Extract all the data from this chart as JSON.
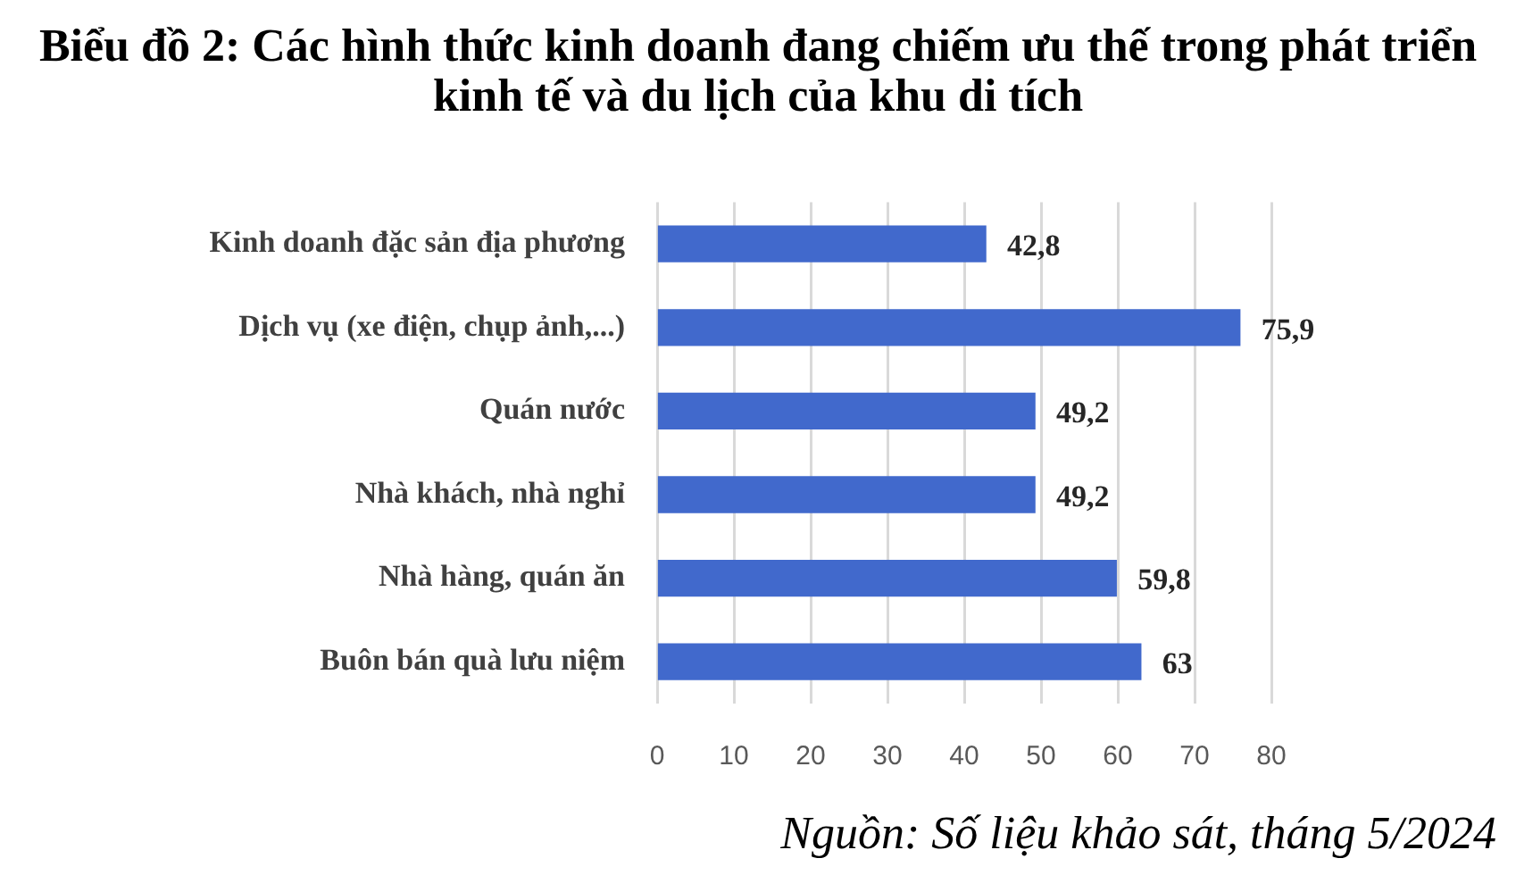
{
  "chart_data": {
    "type": "bar",
    "orientation": "horizontal",
    "title": "Biểu đồ 2: Các hình thức kinh doanh đang chiếm ưu thế trong phát triển kinh tế và du lịch của khu di tích",
    "categories": [
      "Kinh doanh đặc sản địa phương",
      "Dịch vụ (xe điện, chụp ảnh,...)",
      "Quán nước",
      "Nhà khách, nhà nghỉ",
      "Nhà hàng, quán ăn",
      "Buôn bán quà lưu niệm"
    ],
    "values": [
      42.8,
      75.9,
      49.2,
      49.2,
      59.8,
      63
    ],
    "value_labels": [
      "42,8",
      "75,9",
      "49,2",
      "49,2",
      "59,8",
      "63"
    ],
    "color": "#4169cc",
    "xlim": [
      0,
      80
    ],
    "xticks": [
      0,
      10,
      20,
      30,
      40,
      50,
      60,
      70,
      80
    ],
    "grid": "x",
    "annotations": [
      "Nguồn: Số liệu khảo sát, tháng 5/2024"
    ]
  }
}
